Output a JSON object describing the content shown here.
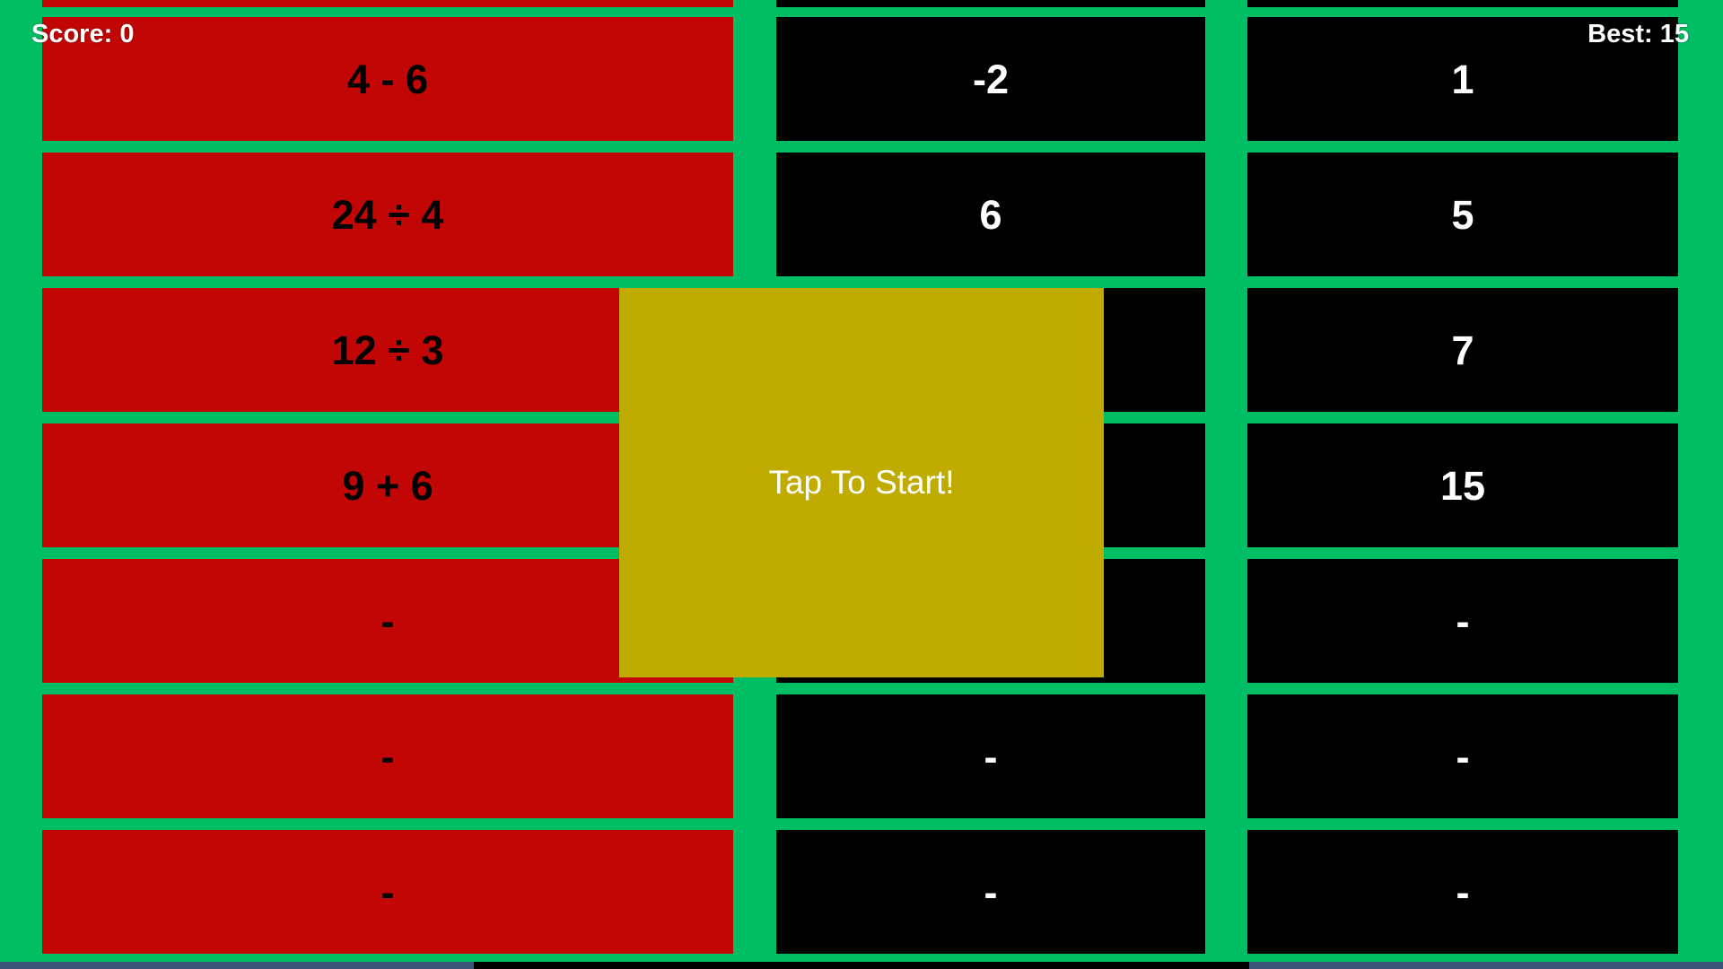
{
  "hud": {
    "score": "Score: 0",
    "best": "Best: 15"
  },
  "overlay": {
    "label": "Tap To Start!"
  },
  "board": {
    "columns": [
      {
        "name": "problems",
        "style": "red",
        "cards": [
          "4 - 6",
          "24 ÷ 4",
          "12 ÷ 3",
          "9 + 6",
          "-",
          "-",
          "-"
        ]
      },
      {
        "name": "answers-left",
        "style": "black",
        "cards": [
          "-2",
          "6",
          "",
          "",
          "",
          "-",
          "-"
        ]
      },
      {
        "name": "answers-right",
        "style": "black",
        "cards": [
          "1",
          "5",
          "7",
          "15",
          "-",
          "-",
          "-"
        ]
      }
    ]
  },
  "bottom_bar": {
    "segments": [
      {
        "color": "#3A5578"
      },
      {
        "color": "#000000"
      },
      {
        "color": "#3A5578"
      }
    ]
  },
  "colors": {
    "green": "#00BE63",
    "red": "#C20505",
    "black": "#000000",
    "yellow": "#C0AB00",
    "text_white": "#FFFFFF",
    "text_black": "#000000"
  }
}
